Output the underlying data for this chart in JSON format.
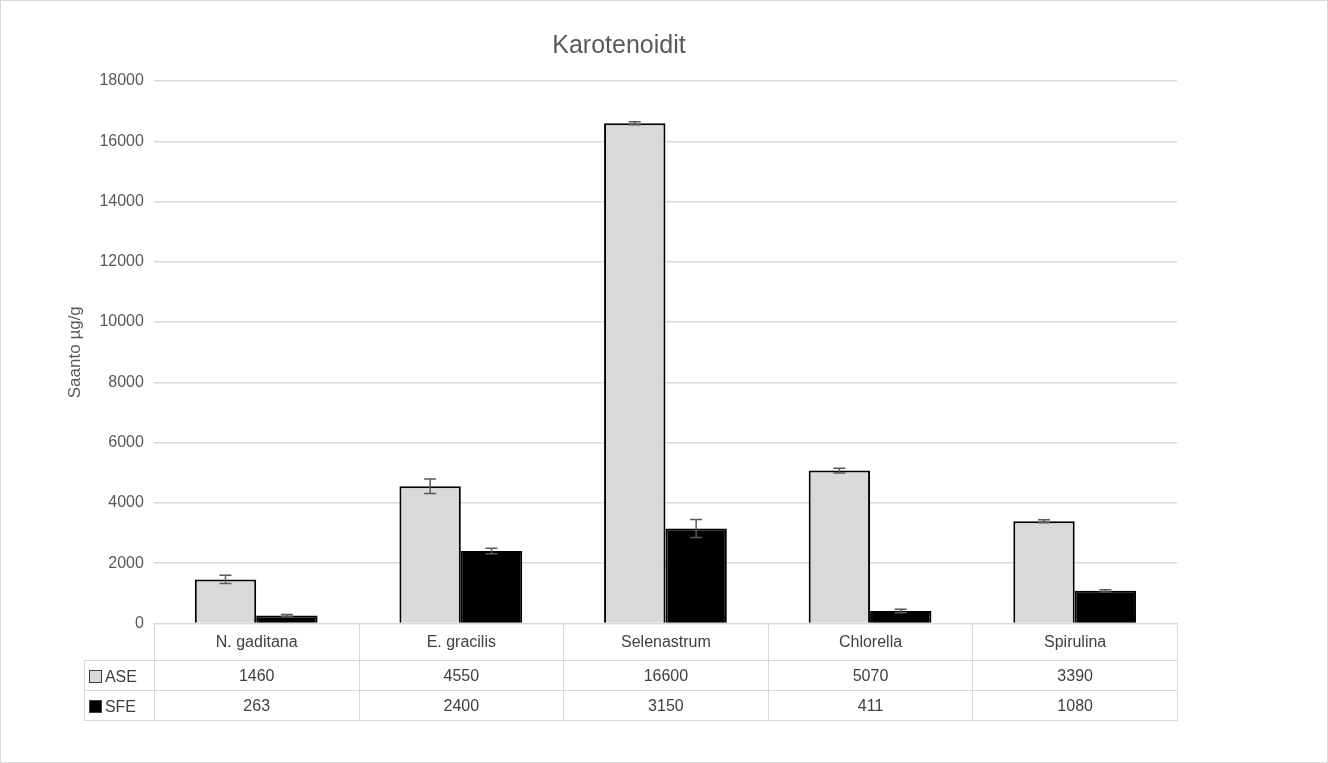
{
  "chart_data": {
    "type": "bar",
    "title": "Karotenoidit",
    "ylabel": "Saanto µg/g",
    "categories": [
      "N. gaditana",
      "E. gracilis",
      "Selenastrum",
      "Chlorella",
      "Spirulina"
    ],
    "series": [
      {
        "name": "ASE",
        "color": "#d9d9d9",
        "values": [
          1460,
          4550,
          16600,
          5070,
          3390
        ],
        "errors": [
          140,
          240,
          50,
          80,
          50
        ]
      },
      {
        "name": "SFE",
        "color": "#000000",
        "values": [
          263,
          2400,
          3150,
          411,
          1080
        ],
        "errors": [
          30,
          90,
          300,
          60,
          40
        ]
      }
    ],
    "ylim": [
      0,
      18000
    ],
    "yticks": [
      0,
      2000,
      4000,
      6000,
      8000,
      10000,
      12000,
      14000,
      16000,
      18000
    ],
    "grid": "y",
    "legend": "bottom left",
    "data_labels": true
  }
}
